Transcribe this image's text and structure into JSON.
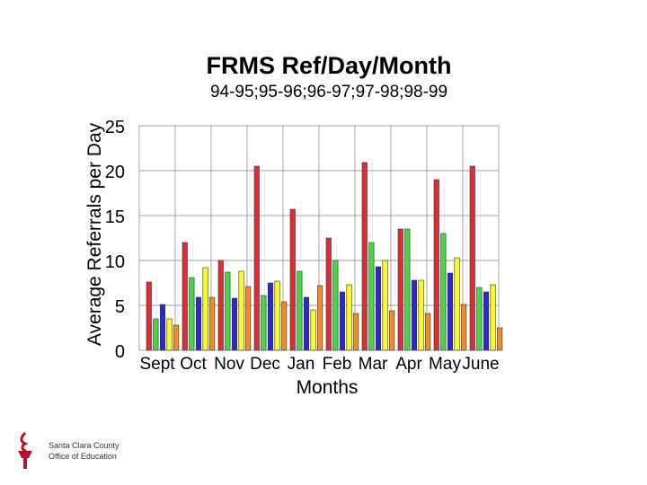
{
  "chart_data": {
    "type": "bar",
    "title": "FRMS Ref/Day/Month",
    "subtitle": "94-95;95-96;96-97;97-98;98-99",
    "xlabel": "Months",
    "ylabel": "Average Referrals per Day",
    "ylim": [
      0,
      25
    ],
    "yticks": [
      0,
      5,
      10,
      15,
      20,
      25
    ],
    "grid": true,
    "legend": "none",
    "categories": [
      "Sept",
      "Oct",
      "Nov",
      "Dec",
      "Jan",
      "Feb",
      "Mar",
      "Apr",
      "May",
      "June"
    ],
    "series": [
      {
        "color": "#e8282e",
        "values": [
          7.6,
          12,
          10,
          20.5,
          15.7,
          12.5,
          20.9,
          13.5,
          19,
          20.5
        ]
      },
      {
        "color": "#3ae03a",
        "values": [
          3.5,
          8.1,
          8.7,
          6.1,
          8.8,
          10,
          12,
          13.5,
          13,
          7
        ]
      },
      {
        "color": "#2a2acf",
        "values": [
          5.1,
          5.9,
          5.8,
          7.5,
          5.9,
          6.5,
          9.3,
          7.8,
          8.6,
          6.5
        ]
      },
      {
        "color": "#f6f63c",
        "values": [
          3.5,
          9.2,
          8.8,
          7.7,
          4.5,
          7.3,
          10,
          7.8,
          10.3,
          7.3
        ]
      },
      {
        "color": "#ec8c2c",
        "values": [
          2.8,
          5.9,
          7.1,
          5.4,
          7.2,
          4.1,
          4.4,
          4.1,
          5.1,
          2.5
        ]
      }
    ]
  },
  "footer": {
    "logo_icon": "torch-icon",
    "logo_line1": "Santa Clara County",
    "logo_line2": "Office of Education"
  }
}
